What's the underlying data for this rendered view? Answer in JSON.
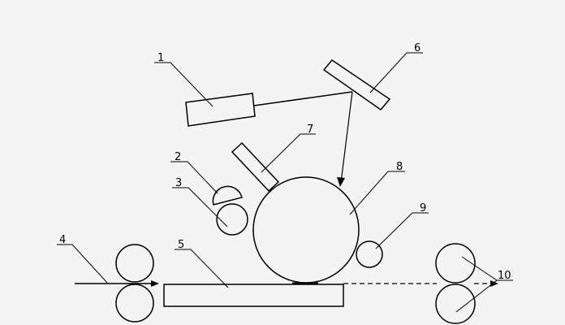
{
  "diagram": {
    "labels": {
      "l1": "1",
      "l2": "2",
      "l3": "3",
      "l4": "4",
      "l5": "5",
      "l6": "6",
      "l7": "7",
      "l8": "8",
      "l9": "9",
      "l10": "10"
    },
    "colors": {
      "background": "#f4f4f4",
      "stroke": "#000000"
    }
  }
}
